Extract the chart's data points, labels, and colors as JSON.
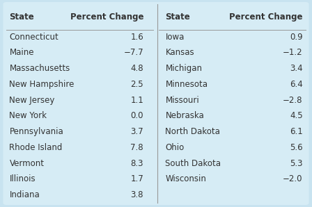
{
  "left_col": [
    [
      "Connecticut",
      "1.6"
    ],
    [
      "Maine",
      "−7.7"
    ],
    [
      "Massachusetts",
      "4.8"
    ],
    [
      "New Hampshire",
      "2.5"
    ],
    [
      "New Jersey",
      "1.1"
    ],
    [
      "New York",
      "0.0"
    ],
    [
      "Pennsylvania",
      "3.7"
    ],
    [
      "Rhode Island",
      "7.8"
    ],
    [
      "Vermont",
      "8.3"
    ],
    [
      "Illinois",
      "1.7"
    ],
    [
      "Indiana",
      "3.8"
    ]
  ],
  "right_col": [
    [
      "Iowa",
      "0.9"
    ],
    [
      "Kansas",
      "−1.2"
    ],
    [
      "Michigan",
      "3.4"
    ],
    [
      "Minnesota",
      "6.4"
    ],
    [
      "Missouri",
      "−2.8"
    ],
    [
      "Nebraska",
      "4.5"
    ],
    [
      "North Dakota",
      "6.1"
    ],
    [
      "Ohio",
      "5.6"
    ],
    [
      "South Dakota",
      "5.3"
    ],
    [
      "Wisconsin",
      "−2.0"
    ]
  ],
  "header_state": "State",
  "header_pct": "Percent Change",
  "bg_color": "#d6ecf5",
  "outer_bg": "#c8e3f0",
  "header_line_color": "#999999",
  "divider_color": "#999999",
  "text_color": "#333333",
  "header_fontsize": 8.5,
  "data_fontsize": 8.5
}
